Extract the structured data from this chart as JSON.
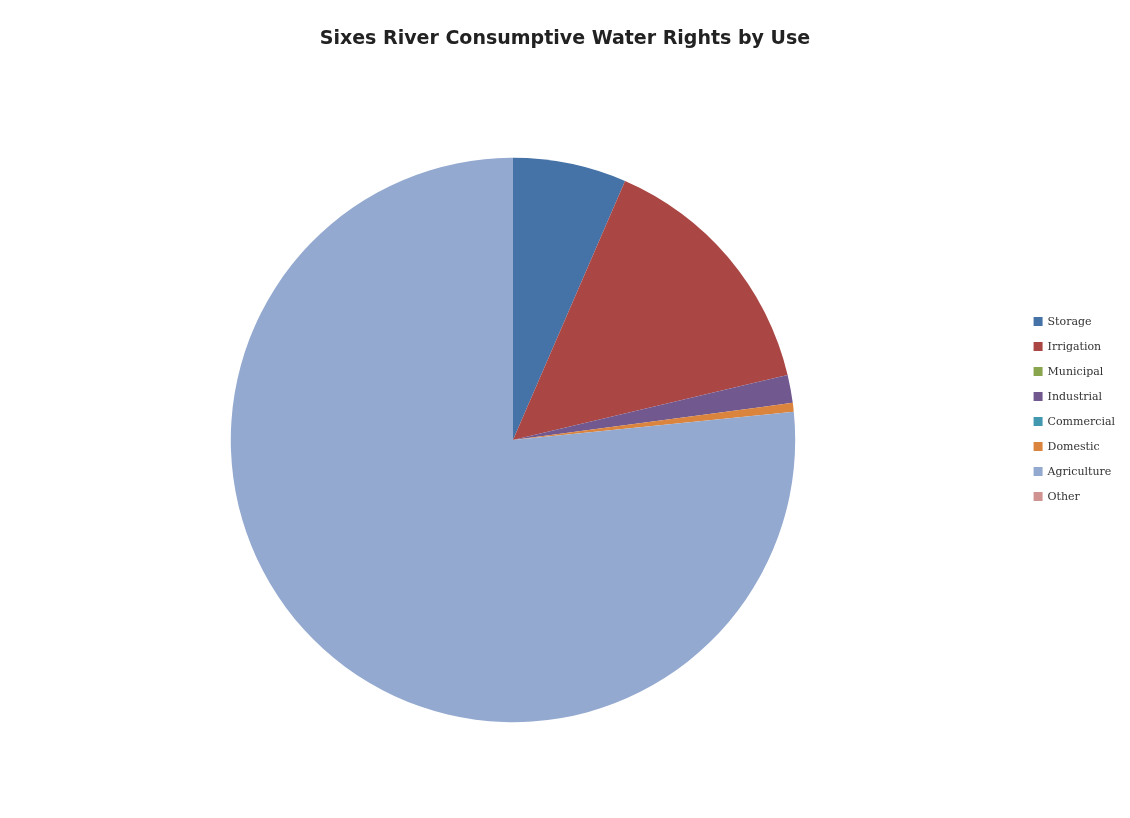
{
  "chart_data": {
    "type": "pie",
    "title": "Sixes River Consumptive Water Rights by Use",
    "categories": [
      "Storage",
      "Irrigation",
      "Municipal",
      "Industrial",
      "Commercial",
      "Domestic",
      "Agriculture",
      "Other"
    ],
    "values": [
      6.5,
      14.8,
      0,
      1.6,
      0,
      0.5,
      76.6,
      0
    ],
    "colors": [
      "#4572a7",
      "#aa4643",
      "#89a54e",
      "#71588f",
      "#4198af",
      "#db843d",
      "#93a9cf",
      "#d19392"
    ],
    "legend": "right"
  }
}
